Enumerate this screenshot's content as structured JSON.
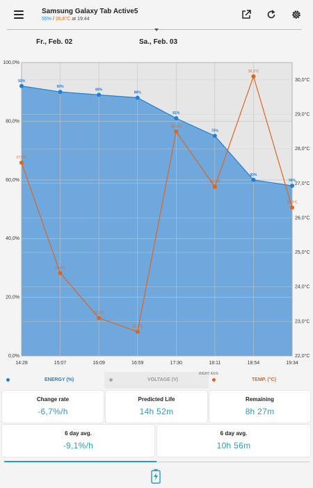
{
  "header": {
    "title": "Samsung Galaxy Tab Active5",
    "sub_pct": "55%",
    "sub_sep": " / ",
    "sub_temp": "26,6°C",
    "sub_time": " at 19:44",
    "icons": [
      "menu-icon",
      "open-external-icon",
      "refresh-icon",
      "settings-icon"
    ]
  },
  "dates": {
    "left": "Fr., Feb. 02",
    "right": "Sa., Feb. 03"
  },
  "chart_data": {
    "type": "line",
    "x": [
      "14:28",
      "15:07",
      "16:09",
      "16:59",
      "17:30",
      "18:11",
      "18:54",
      "19:34"
    ],
    "series": [
      {
        "name": "ENERGY (%)",
        "axis": "left",
        "values": [
          92,
          90,
          89,
          88,
          81,
          75,
          60,
          58
        ],
        "labels": [
          "92%",
          "90%",
          "89%",
          "88%",
          "81%",
          "75%",
          "60%",
          "58%"
        ],
        "color": "#1e7fd6",
        "fill": "#6fa8dc"
      },
      {
        "name": "TEMP. (°C)",
        "axis": "right",
        "values": [
          27.6,
          24.4,
          23.1,
          22.7,
          28.5,
          26.9,
          30.1,
          26.3
        ],
        "labels": [
          "27,6°C",
          "24,4°C",
          "23,1°C",
          "22,7°C",
          "28,5°C",
          "26,9°C",
          "30,1°C",
          "26,3°C"
        ],
        "color": "#e0641e"
      }
    ],
    "left_axis": {
      "ylim": [
        0,
        100
      ],
      "ticks": [
        "0,0%",
        "20,0%",
        "40,0%",
        "60,0%",
        "80,0%",
        "100,0%"
      ]
    },
    "right_axis": {
      "label": "RIGHT AXIS",
      "ylim": [
        22,
        30.5
      ],
      "ticks": [
        "22,0°C",
        "23,0°C",
        "24,0°C",
        "25,0°C",
        "26,0°C",
        "27,0°C",
        "28,0°C",
        "29,0°C",
        "30,0°C"
      ]
    },
    "grid": true
  },
  "legend": {
    "energy": "ENERGY (%)",
    "voltage": "VOLTAGE (V)",
    "temp": "TEMP. (°C)",
    "right_axis": "RIGHT AXIS"
  },
  "stats": {
    "change_rate_label": "Change rate",
    "change_rate_value": "-6,7%/h",
    "predicted_label": "Predicted Life",
    "predicted_value": "14h 52m",
    "remaining_label": "Remaining",
    "remaining_value": "8h 27m",
    "avg1_label": "6 day avg.",
    "avg1_value": "-9,1%/h",
    "avg2_label": "6 day avg.",
    "avg2_value": "10h 56m"
  },
  "colors": {
    "accent": "#2a9bc0",
    "energy": "#1e7fd6",
    "temp": "#e0641e",
    "voltage": "#a8a8a8"
  }
}
